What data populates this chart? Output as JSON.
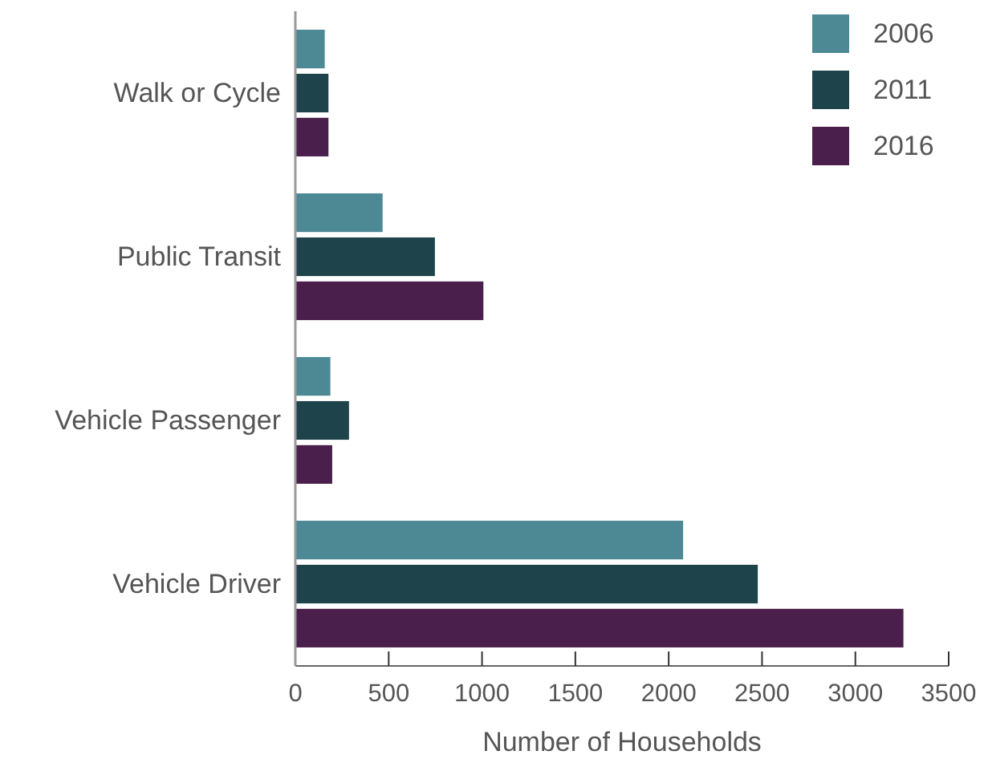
{
  "chart_data": {
    "type": "bar",
    "orientation": "horizontal",
    "xlabel": "Number of Households",
    "categories": [
      "Walk or Cycle",
      "Public Transit",
      "Vehicle Passenger",
      "Vehicle Driver"
    ],
    "series": [
      {
        "name": "2006",
        "color": "#4d8895",
        "values": [
          160,
          470,
          190,
          2080
        ]
      },
      {
        "name": "2011",
        "color": "#1f434a",
        "values": [
          180,
          750,
          290,
          2480
        ]
      },
      {
        "name": "2016",
        "color": "#4b1f4b",
        "values": [
          180,
          1010,
          200,
          3260
        ]
      }
    ],
    "xlim": [
      0,
      3500
    ],
    "xticks": [
      0,
      500,
      1000,
      1500,
      2000,
      2500,
      3000,
      3500
    ],
    "grid": false,
    "legend": "top right"
  }
}
